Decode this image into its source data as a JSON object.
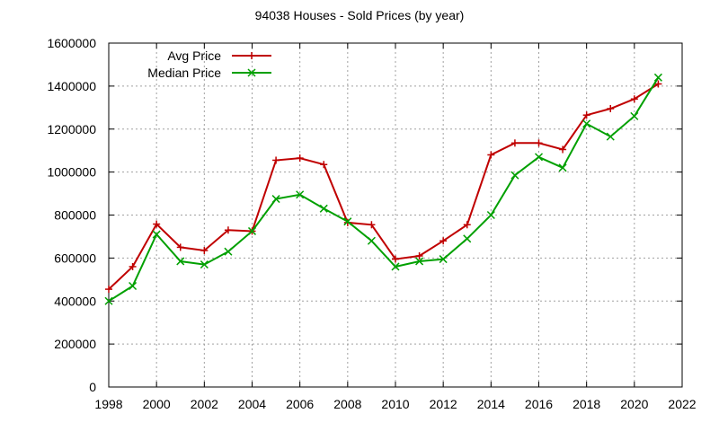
{
  "chart_data": {
    "type": "line",
    "title": "94038 Houses - Sold Prices (by year)",
    "xlabel": "",
    "ylabel": "",
    "xlim": [
      1998,
      2022
    ],
    "ylim": [
      0,
      1600000
    ],
    "xticks": [
      1998,
      2000,
      2002,
      2004,
      2006,
      2008,
      2010,
      2012,
      2014,
      2016,
      2018,
      2020,
      2022
    ],
    "yticks": [
      0,
      200000,
      400000,
      600000,
      800000,
      1000000,
      1200000,
      1400000,
      1600000
    ],
    "grid": true,
    "legend_position": "top-left",
    "x": [
      1998,
      1999,
      2000,
      2001,
      2002,
      2003,
      2004,
      2005,
      2006,
      2007,
      2008,
      2009,
      2010,
      2011,
      2012,
      2013,
      2014,
      2015,
      2016,
      2017,
      2018,
      2019,
      2020,
      2021
    ],
    "series": [
      {
        "name": "Avg Price",
        "color": "#c00000",
        "marker": "plus",
        "values": [
          455000,
          560000,
          758000,
          650000,
          635000,
          730000,
          725000,
          1055000,
          1065000,
          1035000,
          765000,
          755000,
          595000,
          610000,
          680000,
          755000,
          1080000,
          1135000,
          1135000,
          1105000,
          1265000,
          1295000,
          1340000,
          1410000
        ]
      },
      {
        "name": "Median Price",
        "color": "#00a000",
        "marker": "cross",
        "values": [
          400000,
          470000,
          710000,
          585000,
          570000,
          630000,
          725000,
          875000,
          895000,
          830000,
          770000,
          680000,
          560000,
          585000,
          595000,
          690000,
          800000,
          985000,
          1070000,
          1020000,
          1225000,
          1165000,
          1260000,
          1440000
        ]
      }
    ]
  }
}
